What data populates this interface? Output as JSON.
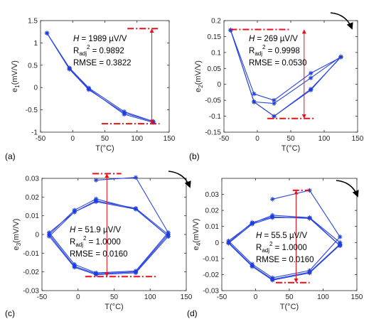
{
  "colors": {
    "series": "#2a45e0",
    "marker": "#1e3de0",
    "annotation": "#e8101a",
    "range_arrow": "#e8101a",
    "axis": "#262626",
    "cycle_arrow": "#000000"
  },
  "chart_data": [
    {
      "type": "line",
      "panel_label": "(a)",
      "xlabel": "T(°C)",
      "ylabel": "e",
      "ylabel_sub": "1",
      "ylabel_suffix": "(mV/V)",
      "xlim": [
        -50,
        150
      ],
      "ylim": [
        -1,
        1.5
      ],
      "xticks": [
        -50,
        0,
        50,
        100,
        150
      ],
      "yticks": [
        -1,
        -0.5,
        0,
        0.5,
        1,
        1.5
      ],
      "ytick_labels": [
        "-1",
        "-0.5",
        "0",
        "0.5",
        "1",
        "1.5"
      ],
      "series": [
        {
          "x": [
            -40,
            -5,
            25,
            80,
            125
          ],
          "y": [
            1.22,
            0.41,
            -0.05,
            -0.57,
            -0.76
          ]
        },
        {
          "x": [
            -40,
            -5,
            25,
            80,
            125
          ],
          "y": [
            1.22,
            0.44,
            -0.01,
            -0.54,
            -0.76
          ]
        },
        {
          "x": [
            -40,
            -5,
            25,
            80,
            125
          ],
          "y": [
            1.22,
            0.43,
            -0.03,
            -0.6,
            -0.78
          ]
        }
      ],
      "annotations": {
        "h_prefix": "H",
        "h_value": " = 1989 µV/V",
        "r_prefix": "R",
        "r_sub": "adj",
        "r_sup": "2",
        "r_value": " = 0.9892",
        "rmse": "RMSE = 0.3822"
      },
      "range_lines": {
        "top": {
          "x": [
            85,
            135
          ],
          "y": 1.32
        },
        "bottom": {
          "x": [
            45,
            135
          ],
          "y": -0.81
        },
        "arrow_x": 123
      },
      "cycle_arrow": false
    },
    {
      "type": "line",
      "panel_label": "(b)",
      "xlabel": "T(°C)",
      "ylabel": "e",
      "ylabel_sub": "2",
      "ylabel_suffix": "(mV/V)",
      "xlim": [
        -50,
        150
      ],
      "ylim": [
        -0.15,
        0.2
      ],
      "xticks": [
        -50,
        0,
        50,
        100,
        150
      ],
      "yticks": [
        -0.15,
        -0.1,
        -0.05,
        0,
        0.05,
        0.1,
        0.15,
        0.2
      ],
      "ytick_labels": [
        "-0.15",
        "-0.1",
        "-0.05",
        "0",
        "0.05",
        "0.1",
        "0.15",
        "0.2"
      ],
      "series": [
        {
          "x": [
            -40,
            -5,
            25,
            80,
            125,
            80,
            25,
            -5,
            -40
          ],
          "y": [
            0.17,
            -0.055,
            -0.1,
            -0.015,
            0.085,
            0.035,
            -0.05,
            -0.03,
            0.17
          ]
        },
        {
          "x": [
            -40,
            -5,
            25,
            80,
            125,
            80,
            25,
            -5,
            -40
          ],
          "y": [
            0.17,
            -0.055,
            -0.1,
            -0.018,
            0.087,
            0.02,
            -0.06,
            -0.055,
            0.17
          ]
        }
      ],
      "annotations": {
        "h_prefix": "H",
        "h_value": " = 269 µV/V",
        "r_prefix": "R",
        "r_sub": "adj",
        "r_sup": "2",
        "r_value": " = 0.9998",
        "rmse": "RMSE = 0.0530"
      },
      "range_lines": {
        "top": {
          "x": [
            -40,
            50
          ],
          "y": 0.172
        },
        "bottom": {
          "x": [
            15,
            85
          ],
          "y": -0.107
        },
        "arrow_x": 70
      },
      "cycle_arrow": true
    },
    {
      "type": "line",
      "panel_label": "(c)",
      "xlabel": "T(°C)",
      "ylabel": "e",
      "ylabel_sub": "3",
      "ylabel_suffix": "(mV/V)",
      "xlim": [
        -50,
        150
      ],
      "ylim": [
        -0.03,
        0.03
      ],
      "xticks": [
        -50,
        0,
        50,
        100,
        150
      ],
      "yticks": [
        -0.03,
        -0.02,
        -0.01,
        0,
        0.01,
        0.02,
        0.03
      ],
      "ytick_labels": [
        "-0.03",
        "-0.02",
        "-0.01",
        "0",
        "0.01",
        "0.02",
        "0.03"
      ],
      "series": [
        {
          "x": [
            25,
            80,
            125,
            80,
            25,
            -5,
            -40,
            -5,
            25,
            80,
            125
          ],
          "y": [
            0.029,
            0.0305,
            0.001,
            -0.0195,
            -0.0205,
            -0.016,
            0.001,
            0.012,
            0.018,
            0.014,
            0.0
          ]
        },
        {
          "x": [
            125,
            80,
            25,
            -5,
            -40,
            -5,
            25,
            80,
            125
          ],
          "y": [
            0.0,
            -0.02,
            -0.021,
            -0.017,
            0.0,
            0.013,
            0.019,
            0.0135,
            -0.001
          ]
        },
        {
          "x": [
            125,
            80,
            25,
            -5,
            -40,
            -5,
            25,
            80,
            125
          ],
          "y": [
            -0.001,
            -0.0205,
            -0.0215,
            -0.0175,
            -0.001,
            0.012,
            0.0175,
            0.0135,
            -0.001
          ]
        }
      ],
      "annotations": {
        "h_prefix": "H",
        "h_value": " = 51.9 µV/V",
        "r_prefix": "R",
        "r_sub": "adj",
        "r_sup": "2",
        "r_value": " = 1.0000",
        "rmse": "RMSE = 0.0160"
      },
      "range_lines": {
        "top": {
          "x": [
            20,
            60
          ],
          "y": 0.0325
        },
        "bottom": {
          "x": [
            10,
            110
          ],
          "y": -0.0225
        },
        "arrow_x": 40
      },
      "cycle_arrow": true
    },
    {
      "type": "line",
      "panel_label": "(d)",
      "xlabel": "T(°C)",
      "ylabel": "e",
      "ylabel_sub": "4",
      "ylabel_suffix": "(mV/V)",
      "xlim": [
        -50,
        150
      ],
      "ylim": [
        -0.03,
        0.04
      ],
      "xticks": [
        -50,
        0,
        50,
        100,
        150
      ],
      "yticks": [
        -0.03,
        -0.02,
        -0.01,
        0,
        0.01,
        0.02,
        0.03
      ],
      "ytick_labels": [
        "-0.03",
        "-0.02",
        "-0.01",
        "0",
        "0.01",
        "0.02",
        "0.03"
      ],
      "series": [
        {
          "x": [
            25,
            80,
            125,
            80,
            25,
            -5,
            -40,
            -5,
            25,
            80,
            125
          ],
          "y": [
            0.027,
            0.0325,
            0.0035,
            -0.0175,
            -0.022,
            -0.0135,
            0.001,
            0.012,
            0.017,
            0.0155,
            0.0
          ]
        },
        {
          "x": [
            125,
            80,
            25,
            -5,
            -40,
            -5,
            25,
            80,
            125
          ],
          "y": [
            -0.001,
            -0.0185,
            -0.023,
            -0.0145,
            0.0,
            0.0125,
            0.016,
            0.015,
            -0.002
          ]
        },
        {
          "x": [
            125,
            80,
            25,
            -5,
            -40,
            -5,
            25,
            80,
            125
          ],
          "y": [
            -0.0015,
            -0.019,
            -0.0235,
            -0.015,
            -0.0005,
            0.0115,
            0.0155,
            0.0155,
            -0.002
          ]
        }
      ],
      "annotations": {
        "h_prefix": "H",
        "h_value": " = 55.5 µV/V",
        "r_prefix": "R",
        "r_sub": "adj",
        "r_sup": "2",
        "r_value": " = 1.0000",
        "rmse": "RMSE = 0.0160"
      },
      "range_lines": {
        "top": {
          "x": [
            55,
            80
          ],
          "y": 0.0325
        },
        "bottom": {
          "x": [
            30,
            80
          ],
          "y": -0.025
        },
        "arrow_x": 60
      },
      "cycle_arrow": true
    }
  ]
}
